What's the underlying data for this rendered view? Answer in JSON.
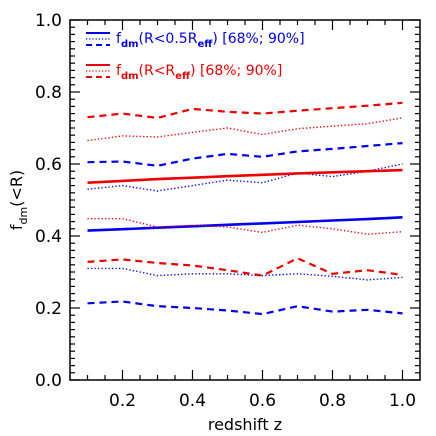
{
  "chart_data": {
    "type": "line",
    "xlabel": "redshift z",
    "ylabel_main": "f",
    "ylabel_sub": "dm",
    "ylabel_tail": "(<R)",
    "xlim": [
      0.05,
      1.05
    ],
    "ylim": [
      0.0,
      1.0
    ],
    "x_ticks": [
      0.2,
      0.4,
      0.6,
      0.8,
      1.0
    ],
    "x_tick_labels": [
      "0.2",
      "0.4",
      "0.6",
      "0.8",
      "1.0"
    ],
    "y_ticks": [
      0.0,
      0.2,
      0.4,
      0.6,
      0.8,
      1.0
    ],
    "y_tick_labels": [
      "0.0",
      "0.2",
      "0.4",
      "0.6",
      "0.8",
      "1.0"
    ],
    "legend_position": "top-left",
    "legend": [
      {
        "prefix": "f",
        "sub": "dm",
        "mid": "(R<0.5R",
        "sub2": "eff",
        "tail": ")  [68%; 90%]",
        "color": "#0000ee"
      },
      {
        "prefix": "f",
        "sub": "dm",
        "mid": "(R<R",
        "sub2": "eff",
        "tail": ")  [68%; 90%]",
        "color": "#ee0000"
      }
    ],
    "x": [
      0.1,
      0.2,
      0.3,
      0.4,
      0.5,
      0.6,
      0.7,
      0.8,
      0.9,
      1.0
    ],
    "series": [
      {
        "group": "blue",
        "style": "solid",
        "color": "#0000ee",
        "values": [
          0.415,
          0.419,
          0.423,
          0.427,
          0.431,
          0.435,
          0.439,
          0.443,
          0.447,
          0.452
        ]
      },
      {
        "group": "blue",
        "style": "dotted",
        "color": "#0000ee",
        "values": [
          0.53,
          0.54,
          0.525,
          0.54,
          0.555,
          0.548,
          0.575,
          0.565,
          0.58,
          0.6
        ]
      },
      {
        "group": "blue",
        "style": "dashed",
        "color": "#0000ee",
        "values": [
          0.605,
          0.607,
          0.595,
          0.615,
          0.628,
          0.62,
          0.635,
          0.642,
          0.65,
          0.658
        ]
      },
      {
        "group": "blue",
        "style": "dotted",
        "color": "#0000ee",
        "values": [
          0.31,
          0.31,
          0.29,
          0.295,
          0.295,
          0.29,
          0.295,
          0.288,
          0.278,
          0.285
        ]
      },
      {
        "group": "blue",
        "style": "dashed",
        "color": "#0000ee",
        "values": [
          0.213,
          0.218,
          0.205,
          0.2,
          0.193,
          0.183,
          0.205,
          0.19,
          0.195,
          0.185
        ]
      },
      {
        "group": "red",
        "style": "solid",
        "color": "#ee0000",
        "values": [
          0.548,
          0.553,
          0.558,
          0.562,
          0.566,
          0.57,
          0.574,
          0.577,
          0.58,
          0.583
        ]
      },
      {
        "group": "red",
        "style": "dotted",
        "color": "#ee0000",
        "values": [
          0.665,
          0.678,
          0.675,
          0.688,
          0.7,
          0.682,
          0.698,
          0.705,
          0.712,
          0.728
        ]
      },
      {
        "group": "red",
        "style": "dashed",
        "color": "#ee0000",
        "values": [
          0.73,
          0.74,
          0.728,
          0.753,
          0.745,
          0.74,
          0.748,
          0.755,
          0.762,
          0.77
        ]
      },
      {
        "group": "red",
        "style": "dotted",
        "color": "#ee0000",
        "values": [
          0.448,
          0.448,
          0.425,
          0.43,
          0.425,
          0.41,
          0.43,
          0.42,
          0.405,
          0.412
        ]
      },
      {
        "group": "red",
        "style": "dashed",
        "color": "#ee0000",
        "values": [
          0.328,
          0.335,
          0.325,
          0.318,
          0.305,
          0.29,
          0.338,
          0.295,
          0.305,
          0.292
        ]
      }
    ]
  }
}
